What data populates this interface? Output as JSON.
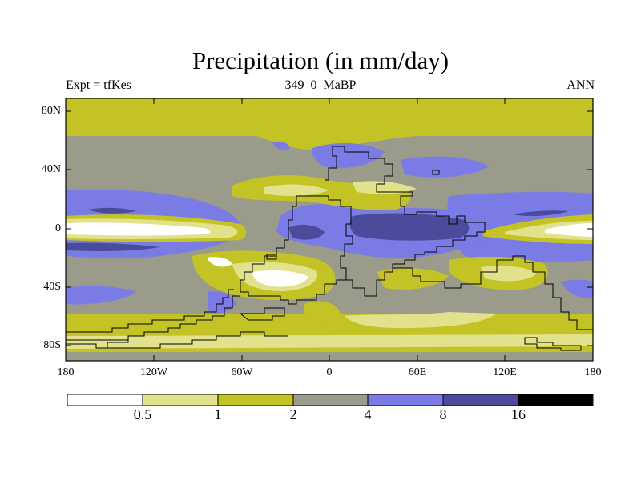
{
  "title": "Precipitation (in mm/day)",
  "subtitle_left": "Expt = tfKes",
  "subtitle_center": "349_0_MaBP",
  "subtitle_right": "ANN",
  "lat_labels": [
    "80N",
    "40N",
    "0",
    "40S",
    "80S"
  ],
  "lon_labels": [
    "180",
    "120W",
    "60W",
    "0",
    "60E",
    "120E",
    "180"
  ],
  "colorbar": {
    "levels": [
      "0.5",
      "1",
      "2",
      "4",
      "8",
      "16"
    ],
    "colors": [
      "#ffffff",
      "#e2e28c",
      "#c3c326",
      "#9b9b8b",
      "#7b7be6",
      "#4b4b9b",
      "#000000"
    ],
    "bin_labels": [
      "<0.5",
      "0.5-1",
      "1-2",
      "2-4",
      "4-8",
      "8-16",
      ">16"
    ]
  },
  "colors": {
    "white": "#ffffff",
    "light_yellow": "#e2e28c",
    "olive": "#c3c326",
    "gray": "#9b9b8b",
    "blue": "#7b7be6",
    "dark_blue": "#4b4b9b",
    "black": "#000000",
    "coastline": "#000000"
  }
}
